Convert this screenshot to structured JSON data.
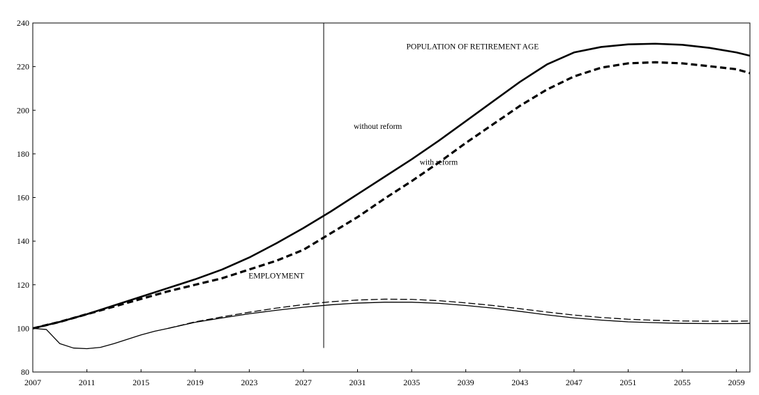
{
  "chart_data": {
    "type": "line",
    "title": "",
    "xlabel": "",
    "ylabel": "",
    "xlim": [
      2007,
      2060
    ],
    "ylim": [
      80,
      240
    ],
    "grid": false,
    "legend": "none",
    "x_ticks": [
      2007,
      2011,
      2015,
      2019,
      2023,
      2027,
      2031,
      2035,
      2039,
      2043,
      2047,
      2051,
      2055,
      2059
    ],
    "y_ticks": [
      80,
      100,
      120,
      140,
      160,
      180,
      200,
      220,
      240
    ],
    "reference_line": {
      "x": 2028.5,
      "y_from": 91,
      "y_to": 240
    },
    "annotations": [
      {
        "text": "POPULATION OF RETIREMENT AGE",
        "x": 2039.5,
        "y": 228
      },
      {
        "text": "without reform",
        "x": 2032.5,
        "y": 191.5
      },
      {
        "text": "with reform",
        "x": 2037.0,
        "y": 175
      },
      {
        "text": "EMPLOYMENT",
        "x": 2025.0,
        "y": 123
      }
    ],
    "series": [
      {
        "group": "POPULATION OF RETIREMENT AGE",
        "label": "without reform",
        "style": "solid-thick",
        "color": "#000000",
        "x": [
          2007,
          2009,
          2011,
          2013,
          2015,
          2017,
          2019,
          2021,
          2023,
          2025,
          2027,
          2029,
          2031,
          2033,
          2035,
          2037,
          2039,
          2041,
          2043,
          2045,
          2047,
          2049,
          2051,
          2053,
          2055,
          2057,
          2059,
          2060
        ],
        "values": [
          100,
          103,
          106.5,
          110.5,
          114.5,
          118.5,
          122.5,
          127,
          132.5,
          139,
          146,
          153.5,
          161.5,
          169.5,
          177.5,
          186,
          195,
          204,
          213,
          221,
          226.5,
          229,
          230.2,
          230.5,
          230,
          228.6,
          226.5,
          225
        ]
      },
      {
        "group": "POPULATION OF RETIREMENT AGE",
        "label": "with reform",
        "style": "dashed-thick",
        "color": "#000000",
        "x": [
          2007,
          2009,
          2011,
          2013,
          2015,
          2017,
          2019,
          2021,
          2023,
          2025,
          2027,
          2029,
          2031,
          2033,
          2035,
          2037,
          2039,
          2041,
          2043,
          2045,
          2047,
          2049,
          2051,
          2053,
          2055,
          2057,
          2059,
          2060
        ],
        "values": [
          100,
          103,
          106.5,
          110,
          113.5,
          117,
          120,
          123,
          127,
          131,
          136,
          143.5,
          151,
          159.5,
          167.5,
          176,
          185,
          193.5,
          202,
          209.5,
          215.5,
          219.5,
          221.5,
          222,
          221.5,
          220.2,
          218.8,
          217
        ]
      },
      {
        "group": "EMPLOYMENT",
        "label": "without reform",
        "style": "solid-thin",
        "color": "#000000",
        "x": [
          2007,
          2008,
          2009,
          2010,
          2011,
          2012,
          2013,
          2014,
          2015,
          2016,
          2017,
          2019,
          2021,
          2023,
          2025,
          2027,
          2029,
          2031,
          2033,
          2035,
          2037,
          2039,
          2041,
          2043,
          2045,
          2047,
          2049,
          2051,
          2053,
          2055,
          2057,
          2059,
          2060
        ],
        "values": [
          100,
          99.5,
          93,
          91,
          90.7,
          91.3,
          93,
          95,
          97,
          98.7,
          100,
          102.8,
          104.8,
          106.7,
          108.3,
          109.7,
          110.8,
          111.6,
          112,
          112,
          111.5,
          110.5,
          109.3,
          107.8,
          106.2,
          104.8,
          103.8,
          103,
          102.6,
          102.3,
          102.2,
          102.2,
          102.3
        ]
      },
      {
        "group": "EMPLOYMENT",
        "label": "with reform",
        "style": "dashed-thin",
        "color": "#000000",
        "x": [
          2017,
          2019,
          2021,
          2023,
          2025,
          2027,
          2029,
          2031,
          2033,
          2035,
          2037,
          2039,
          2041,
          2043,
          2045,
          2047,
          2049,
          2051,
          2053,
          2055,
          2057,
          2059,
          2060
        ],
        "values": [
          100,
          103,
          105.3,
          107.4,
          109.3,
          110.9,
          112.2,
          113,
          113.4,
          113.3,
          112.7,
          111.7,
          110.5,
          109,
          107.5,
          106.1,
          105,
          104.2,
          103.7,
          103.4,
          103.3,
          103.3,
          103.4
        ]
      }
    ]
  }
}
